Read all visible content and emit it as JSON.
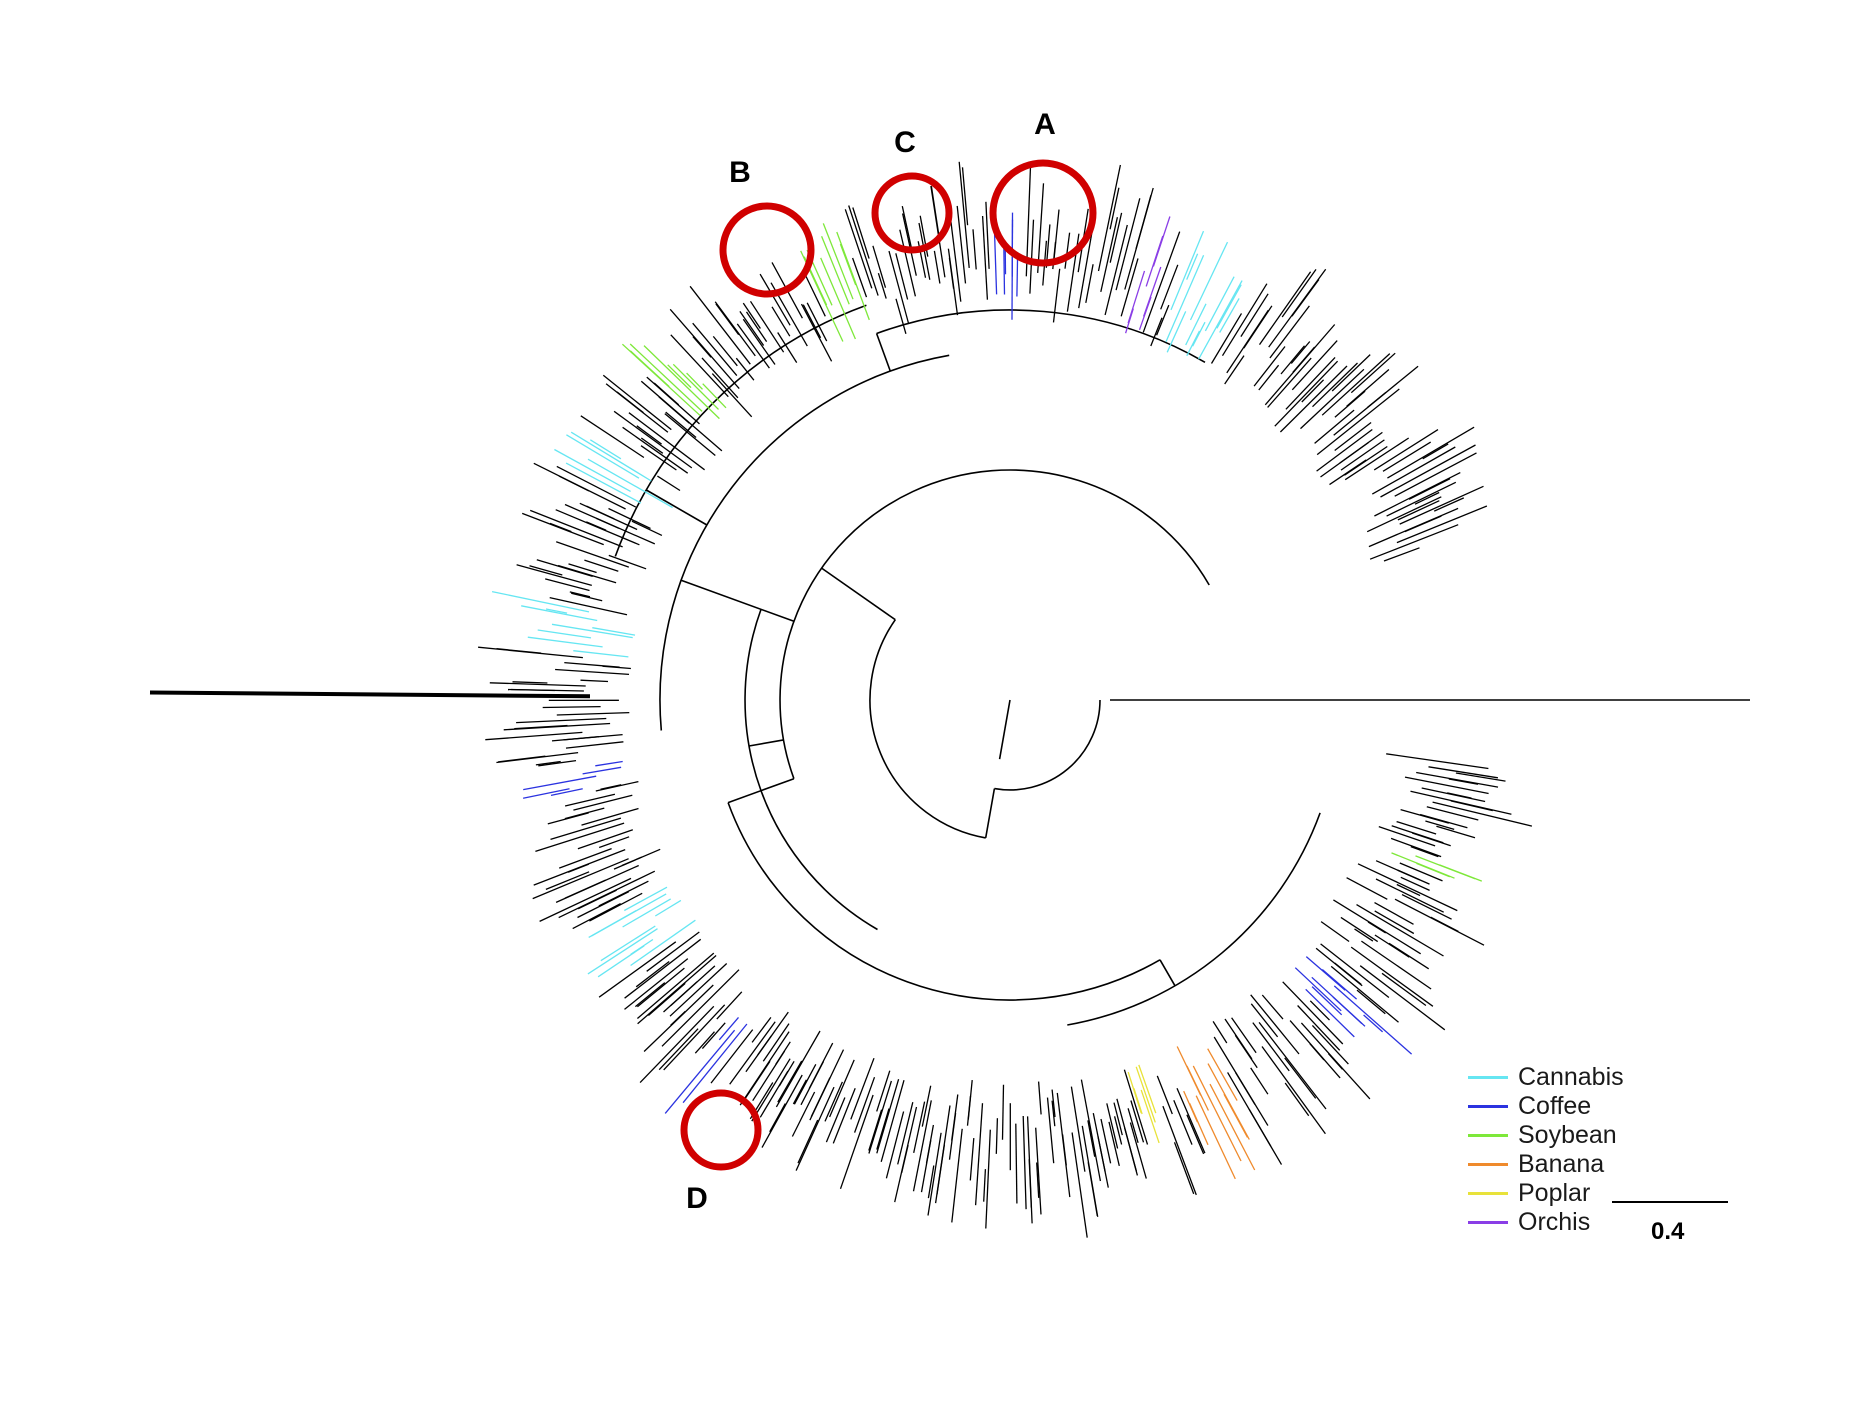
{
  "tree": {
    "branch_color": "#000000",
    "circle_color": "#d00000",
    "clade_colors": {
      "cannabis": "#66e6f2",
      "coffee": "#2b33e0",
      "soybean": "#7ee83a",
      "banana": "#ef8a2c",
      "poplar": "#e8e23a",
      "orchis": "#8a3ee6"
    }
  },
  "markers": [
    {
      "id": "A",
      "label": "A"
    },
    {
      "id": "B",
      "label": "B"
    },
    {
      "id": "C",
      "label": "C"
    },
    {
      "id": "D",
      "label": "D"
    }
  ],
  "legend": [
    {
      "label": "Cannabis",
      "color": "#66e6f2"
    },
    {
      "label": "Coffee",
      "color": "#2b33e0"
    },
    {
      "label": "Soybean",
      "color": "#7ee83a"
    },
    {
      "label": "Banana",
      "color": "#ef8a2c"
    },
    {
      "label": "Poplar",
      "color": "#e8e23a"
    },
    {
      "label": "Orchis",
      "color": "#8a3ee6"
    }
  ],
  "scale_bar": {
    "label": "0.4"
  }
}
